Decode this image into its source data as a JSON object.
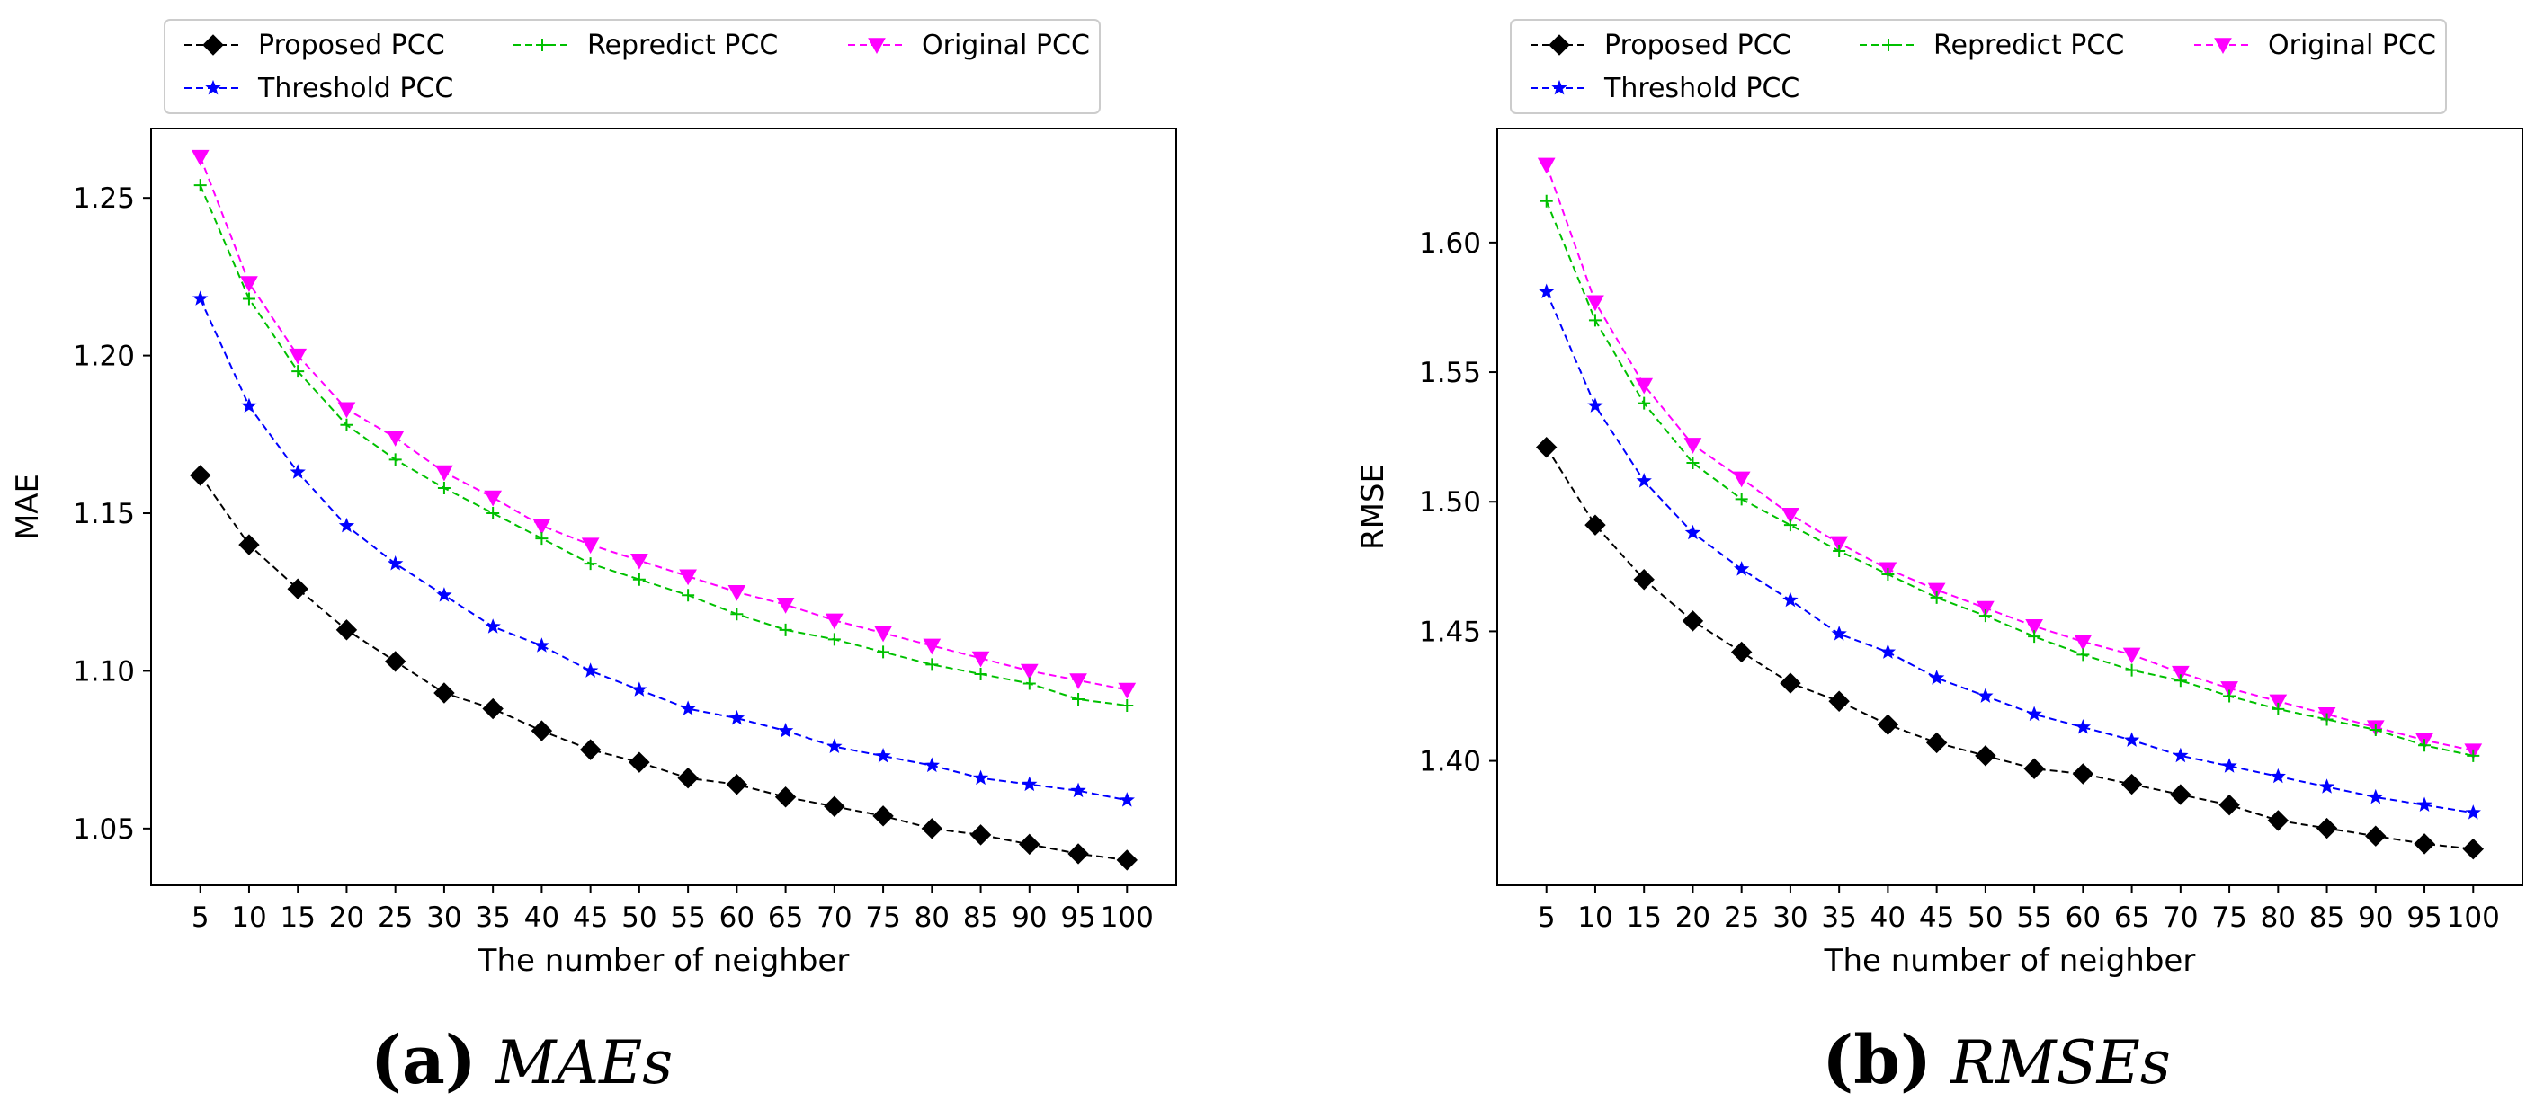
{
  "chart_data": [
    {
      "type": "line",
      "id": "mae",
      "title": "",
      "xlabel": "The number of neighber",
      "ylabel": "MAE",
      "x": [
        5,
        10,
        15,
        20,
        25,
        30,
        35,
        40,
        45,
        50,
        55,
        60,
        65,
        70,
        75,
        80,
        85,
        90,
        95,
        100
      ],
      "x_ticks": [
        "5",
        "10",
        "15",
        "20",
        "25",
        "30",
        "35",
        "40",
        "45",
        "50",
        "55",
        "60",
        "65",
        "70",
        "75",
        "80",
        "85",
        "90",
        "95",
        "100"
      ],
      "ylim": [
        1.032,
        1.272
      ],
      "y_ticks": [
        1.05,
        1.1,
        1.15,
        1.2,
        1.25
      ],
      "y_tick_labels": [
        "1.05",
        "1.10",
        "1.15",
        "1.20",
        "1.25"
      ],
      "legend_position": "top",
      "series": [
        {
          "name": "Proposed PCC",
          "color": "#000000",
          "marker": "diamond",
          "values": [
            1.162,
            1.14,
            1.126,
            1.113,
            1.103,
            1.093,
            1.088,
            1.081,
            1.075,
            1.071,
            1.066,
            1.064,
            1.06,
            1.057,
            1.054,
            1.05,
            1.048,
            1.045,
            1.042,
            1.04
          ]
        },
        {
          "name": "Threshold PCC",
          "color": "#0000ff",
          "marker": "star",
          "values": [
            1.218,
            1.184,
            1.163,
            1.146,
            1.134,
            1.124,
            1.114,
            1.108,
            1.1,
            1.094,
            1.088,
            1.085,
            1.081,
            1.076,
            1.073,
            1.07,
            1.066,
            1.064,
            1.062,
            1.059
          ]
        },
        {
          "name": "Repredict PCC",
          "color": "#00c000",
          "marker": "plus",
          "values": [
            1.254,
            1.218,
            1.195,
            1.178,
            1.167,
            1.158,
            1.15,
            1.142,
            1.134,
            1.129,
            1.124,
            1.118,
            1.113,
            1.11,
            1.106,
            1.102,
            1.099,
            1.096,
            1.091,
            1.089
          ]
        },
        {
          "name": "Original PCC",
          "color": "#ff00ff",
          "marker": "triangle-down",
          "values": [
            1.263,
            1.223,
            1.2,
            1.183,
            1.174,
            1.163,
            1.155,
            1.146,
            1.14,
            1.135,
            1.13,
            1.125,
            1.121,
            1.116,
            1.112,
            1.108,
            1.104,
            1.1,
            1.097,
            1.094
          ]
        }
      ]
    },
    {
      "type": "line",
      "id": "rmse",
      "title": "",
      "xlabel": "The number of neighber",
      "ylabel": "RMSE",
      "x": [
        5,
        10,
        15,
        20,
        25,
        30,
        35,
        40,
        45,
        50,
        55,
        60,
        65,
        70,
        75,
        80,
        85,
        90,
        95,
        100
      ],
      "x_ticks": [
        "5",
        "10",
        "15",
        "20",
        "25",
        "30",
        "35",
        "40",
        "45",
        "50",
        "55",
        "60",
        "65",
        "70",
        "75",
        "80",
        "85",
        "90",
        "95",
        "100"
      ],
      "ylim": [
        1.352,
        1.644
      ],
      "y_ticks": [
        1.4,
        1.45,
        1.5,
        1.55,
        1.6
      ],
      "y_tick_labels": [
        "1.40",
        "1.45",
        "1.50",
        "1.55",
        "1.60"
      ],
      "legend_position": "top",
      "series": [
        {
          "name": "Proposed PCC",
          "color": "#000000",
          "marker": "diamond",
          "values": [
            1.521,
            1.491,
            1.47,
            1.454,
            1.442,
            1.43,
            1.423,
            1.414,
            1.407,
            1.402,
            1.397,
            1.395,
            1.391,
            1.387,
            1.383,
            1.377,
            1.374,
            1.371,
            1.368,
            1.366
          ]
        },
        {
          "name": "Threshold PCC",
          "color": "#0000ff",
          "marker": "star",
          "values": [
            1.581,
            1.537,
            1.508,
            1.488,
            1.474,
            1.462,
            1.449,
            1.442,
            1.432,
            1.425,
            1.418,
            1.413,
            1.408,
            1.402,
            1.398,
            1.394,
            1.39,
            1.386,
            1.383,
            1.38
          ]
        },
        {
          "name": "Repredict PCC",
          "color": "#00c000",
          "marker": "plus",
          "values": [
            1.616,
            1.57,
            1.538,
            1.515,
            1.501,
            1.491,
            1.481,
            1.472,
            1.463,
            1.456,
            1.448,
            1.441,
            1.435,
            1.431,
            1.425,
            1.42,
            1.416,
            1.412,
            1.406,
            1.402
          ]
        },
        {
          "name": "Original PCC",
          "color": "#ff00ff",
          "marker": "triangle-down",
          "values": [
            1.63,
            1.577,
            1.545,
            1.522,
            1.509,
            1.495,
            1.484,
            1.474,
            1.466,
            1.459,
            1.452,
            1.446,
            1.441,
            1.434,
            1.428,
            1.423,
            1.418,
            1.413,
            1.408,
            1.404
          ]
        }
      ]
    }
  ],
  "captions": [
    {
      "letter": "(a)",
      "text": "MAEs"
    },
    {
      "letter": "(b)",
      "text": "RMSEs"
    }
  ]
}
